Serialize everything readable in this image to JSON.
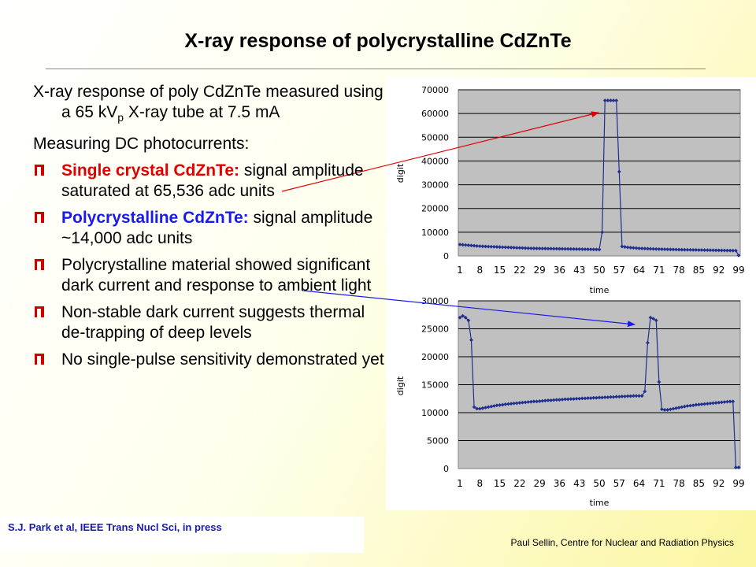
{
  "slide": {
    "title": "X-ray response of polycrystalline CdZnTe",
    "intro_part1": "X-ray response of poly CdZnTe measured using a 65 kV",
    "intro_sub": "p",
    "intro_part2": " X-ray tube at 7.5 mA",
    "measuring": "Measuring DC photocurrents:",
    "bullets": [
      {
        "highlight": "Single crystal CdZnTe:",
        "text": " signal amplitude saturated at 65,536 adc units"
      },
      {
        "highlight": "Polycrystalline CdZnTe:",
        "text": " signal amplitude ~14,000 adc units"
      },
      {
        "highlight": "",
        "text": "Polycrystalline material showed significant dark current and response to ambient light"
      },
      {
        "highlight": "",
        "text": "Non-stable dark current suggests thermal de-trapping of deep levels"
      },
      {
        "highlight": "",
        "text": "No single-pulse sensitivity demonstrated yet"
      }
    ],
    "citation": "S.J. Park et al, IEEE Trans Nucl Sci, in press",
    "footer": "Paul Sellin, Centre for Nuclear and Radiation Physics"
  },
  "colors": {
    "bullet": "#cc0000",
    "red_text": "#e00000",
    "blue_text": "#1a1aee",
    "series": "#1f2f8f",
    "plot_bg": "#c0c0c0",
    "arrow_red": "#e00000",
    "arrow_blue": "#1a1aee"
  },
  "chart_data": [
    {
      "type": "line",
      "title": "",
      "xlabel": "time",
      "ylabel": "digit",
      "ylim": [
        0,
        70000
      ],
      "yticks": [
        0,
        10000,
        20000,
        30000,
        40000,
        50000,
        60000,
        70000
      ],
      "xticks": [
        1,
        8,
        15,
        22,
        29,
        36,
        43,
        50,
        57,
        64,
        71,
        78,
        85,
        92,
        99
      ],
      "x": [
        1,
        2,
        3,
        4,
        5,
        6,
        7,
        8,
        9,
        10,
        11,
        12,
        13,
        14,
        15,
        16,
        17,
        18,
        19,
        20,
        21,
        22,
        23,
        24,
        25,
        26,
        27,
        28,
        29,
        30,
        31,
        32,
        33,
        34,
        35,
        36,
        37,
        38,
        39,
        40,
        41,
        42,
        43,
        44,
        45,
        46,
        47,
        48,
        49,
        50,
        51,
        52,
        53,
        54,
        55,
        56,
        57,
        58,
        59,
        60,
        61,
        62,
        63,
        64,
        65,
        66,
        67,
        68,
        69,
        70,
        71,
        72,
        73,
        74,
        75,
        76,
        77,
        78,
        79,
        80,
        81,
        82,
        83,
        84,
        85,
        86,
        87,
        88,
        89,
        90,
        91,
        92,
        93,
        94,
        95,
        96,
        97,
        98,
        99
      ],
      "series": [
        {
          "name": "",
          "values": [
            4800,
            4700,
            4600,
            4500,
            4400,
            4300,
            4200,
            4100,
            4050,
            4000,
            3950,
            3900,
            3850,
            3800,
            3750,
            3700,
            3650,
            3600,
            3550,
            3500,
            3450,
            3400,
            3350,
            3300,
            3250,
            3200,
            3180,
            3160,
            3140,
            3120,
            3100,
            3080,
            3060,
            3040,
            3020,
            3000,
            2980,
            2960,
            2940,
            2920,
            2900,
            2880,
            2860,
            2840,
            2820,
            2800,
            2780,
            2760,
            2740,
            2720,
            10000,
            65500,
            65500,
            65500,
            65500,
            65500,
            35500,
            4000,
            3800,
            3600,
            3500,
            3400,
            3300,
            3200,
            3150,
            3100,
            3050,
            3000,
            2950,
            2900,
            2870,
            2840,
            2810,
            2780,
            2750,
            2720,
            2690,
            2660,
            2630,
            2600,
            2580,
            2560,
            2540,
            2520,
            2500,
            2480,
            2460,
            2440,
            2420,
            2400,
            2380,
            2360,
            2340,
            2320,
            2300,
            2280,
            2260,
            2240,
            200
          ]
        }
      ]
    },
    {
      "type": "line",
      "title": "",
      "xlabel": "time",
      "ylabel": "digit",
      "ylim": [
        0,
        30000
      ],
      "yticks": [
        0,
        5000,
        10000,
        15000,
        20000,
        25000,
        30000
      ],
      "xticks": [
        1,
        8,
        15,
        22,
        29,
        36,
        43,
        50,
        57,
        64,
        71,
        78,
        85,
        92,
        99
      ],
      "x": [
        1,
        2,
        3,
        4,
        5,
        6,
        7,
        8,
        9,
        10,
        11,
        12,
        13,
        14,
        15,
        16,
        17,
        18,
        19,
        20,
        21,
        22,
        23,
        24,
        25,
        26,
        27,
        28,
        29,
        30,
        31,
        32,
        33,
        34,
        35,
        36,
        37,
        38,
        39,
        40,
        41,
        42,
        43,
        44,
        45,
        46,
        47,
        48,
        49,
        50,
        51,
        52,
        53,
        54,
        55,
        56,
        57,
        58,
        59,
        60,
        61,
        62,
        63,
        64,
        65,
        66,
        67,
        68,
        69,
        70,
        71,
        72,
        73,
        74,
        75,
        76,
        77,
        78,
        79,
        80,
        81,
        82,
        83,
        84,
        85,
        86,
        87,
        88,
        89,
        90,
        91,
        92,
        93,
        94,
        95,
        96,
        97,
        98,
        99
      ],
      "series": [
        {
          "name": "",
          "values": [
            27000,
            27300,
            27000,
            26500,
            23000,
            11000,
            10700,
            10700,
            10800,
            10900,
            11000,
            11100,
            11200,
            11300,
            11350,
            11400,
            11500,
            11550,
            11600,
            11650,
            11700,
            11750,
            11800,
            11850,
            11900,
            11950,
            12000,
            12000,
            12050,
            12100,
            12150,
            12200,
            12200,
            12250,
            12300,
            12300,
            12350,
            12400,
            12400,
            12450,
            12450,
            12500,
            12500,
            12550,
            12550,
            12600,
            12600,
            12650,
            12650,
            12700,
            12700,
            12750,
            12750,
            12800,
            12800,
            12850,
            12850,
            12900,
            12900,
            12950,
            12950,
            13000,
            13000,
            13000,
            13000,
            13800,
            22500,
            27000,
            26800,
            26500,
            15500,
            10600,
            10500,
            10500,
            10600,
            10700,
            10800,
            10900,
            11000,
            11100,
            11200,
            11250,
            11300,
            11400,
            11450,
            11500,
            11550,
            11600,
            11650,
            11700,
            11750,
            11800,
            11850,
            11900,
            11950,
            12000,
            12000,
            200,
            200
          ]
        }
      ]
    }
  ]
}
